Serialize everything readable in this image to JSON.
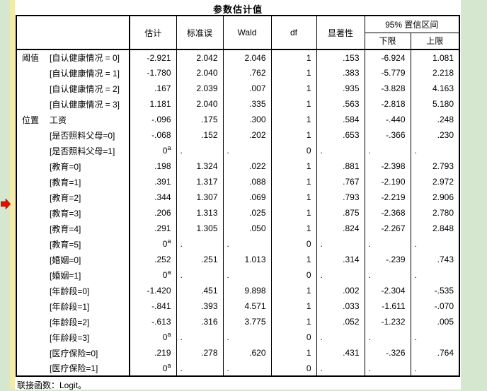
{
  "title": "参数估计值",
  "footer_note": "联接函数：Logit。",
  "table": {
    "columns": [
      "估计",
      "标准误",
      "Wald",
      "df",
      "显著性"
    ],
    "ci": {
      "header": "95% 置信区间",
      "lower": "下限",
      "upper": "上限"
    },
    "rows": [
      {
        "group": "阈值",
        "label": "[自认健康情况 = 0]",
        "values": [
          "-2.921",
          "2.042",
          "2.046",
          "1",
          ".153",
          "-6.924",
          "1.081"
        ]
      },
      {
        "label": "[自认健康情况 = 1]",
        "values": [
          "-1.780",
          "2.040",
          ".762",
          "1",
          ".383",
          "-5.779",
          "2.218"
        ]
      },
      {
        "label": "[自认健康情况 = 2]",
        "values": [
          ".167",
          "2.039",
          ".007",
          "1",
          ".935",
          "-3.828",
          "4.163"
        ]
      },
      {
        "label": "[自认健康情况 = 3]",
        "values": [
          "1.181",
          "2.040",
          ".335",
          "1",
          ".563",
          "-2.818",
          "5.180"
        ]
      },
      {
        "group": "位置",
        "label": "工资",
        "values": [
          "-.096",
          ".175",
          ".300",
          "1",
          ".584",
          "-.440",
          ".248"
        ]
      },
      {
        "label": "[是否照料父母=0]",
        "values": [
          "-.068",
          ".152",
          ".202",
          "1",
          ".653",
          "-.366",
          ".230"
        ]
      },
      {
        "label": "[是否照料父母=1]",
        "values": [
          "0^a",
          ".",
          ".",
          "0",
          ".",
          ".",
          "."
        ]
      },
      {
        "label": "[教育=0]",
        "values": [
          ".198",
          "1.324",
          ".022",
          "1",
          ".881",
          "-2.398",
          "2.793"
        ]
      },
      {
        "label": "[教育=1]",
        "values": [
          ".391",
          "1.317",
          ".088",
          "1",
          ".767",
          "-2.190",
          "2.972"
        ]
      },
      {
        "label": "[教育=2]",
        "values": [
          ".344",
          "1.307",
          ".069",
          "1",
          ".793",
          "-2.219",
          "2.906"
        ]
      },
      {
        "label": "[教育=3]",
        "values": [
          ".206",
          "1.313",
          ".025",
          "1",
          ".875",
          "-2.368",
          "2.780"
        ]
      },
      {
        "label": "[教育=4]",
        "values": [
          ".291",
          "1.305",
          ".050",
          "1",
          ".824",
          "-2.267",
          "2.848"
        ]
      },
      {
        "label": "[教育=5]",
        "values": [
          "0^a",
          ".",
          ".",
          "0",
          ".",
          ".",
          "."
        ]
      },
      {
        "label": "[婚姻=0]",
        "values": [
          ".252",
          ".251",
          "1.013",
          "1",
          ".314",
          "-.239",
          ".743"
        ]
      },
      {
        "label": "[婚姻=1]",
        "values": [
          "0^a",
          ".",
          ".",
          "0",
          ".",
          ".",
          "."
        ]
      },
      {
        "label": "[年龄段=0]",
        "values": [
          "-1.420",
          ".451",
          "9.898",
          "1",
          ".002",
          "-2.304",
          "-.535"
        ]
      },
      {
        "label": "[年龄段=1]",
        "values": [
          "-.841",
          ".393",
          "4.571",
          "1",
          ".033",
          "-1.611",
          "-.070"
        ]
      },
      {
        "label": "[年龄段=2]",
        "values": [
          "-.613",
          ".316",
          "3.775",
          "1",
          ".052",
          "-1.232",
          ".005"
        ]
      },
      {
        "label": "[年龄段=3]",
        "values": [
          "0^a",
          ".",
          ".",
          "0",
          ".",
          ".",
          "."
        ]
      },
      {
        "label": "[医疗保险=0]",
        "values": [
          ".219",
          ".278",
          ".620",
          "1",
          ".431",
          "-.326",
          ".764"
        ]
      },
      {
        "label": "[医疗保险=1]",
        "values": [
          "0^a",
          ".",
          ".",
          "0",
          ".",
          ".",
          "."
        ]
      }
    ]
  },
  "marker": {
    "icon": "red-arrow-right",
    "color": "#dd1100"
  },
  "colors": {
    "background": "#d6e7d0",
    "page": "#ffffff",
    "edge_strip": "#f4ebaa",
    "table_border": "#000000"
  }
}
